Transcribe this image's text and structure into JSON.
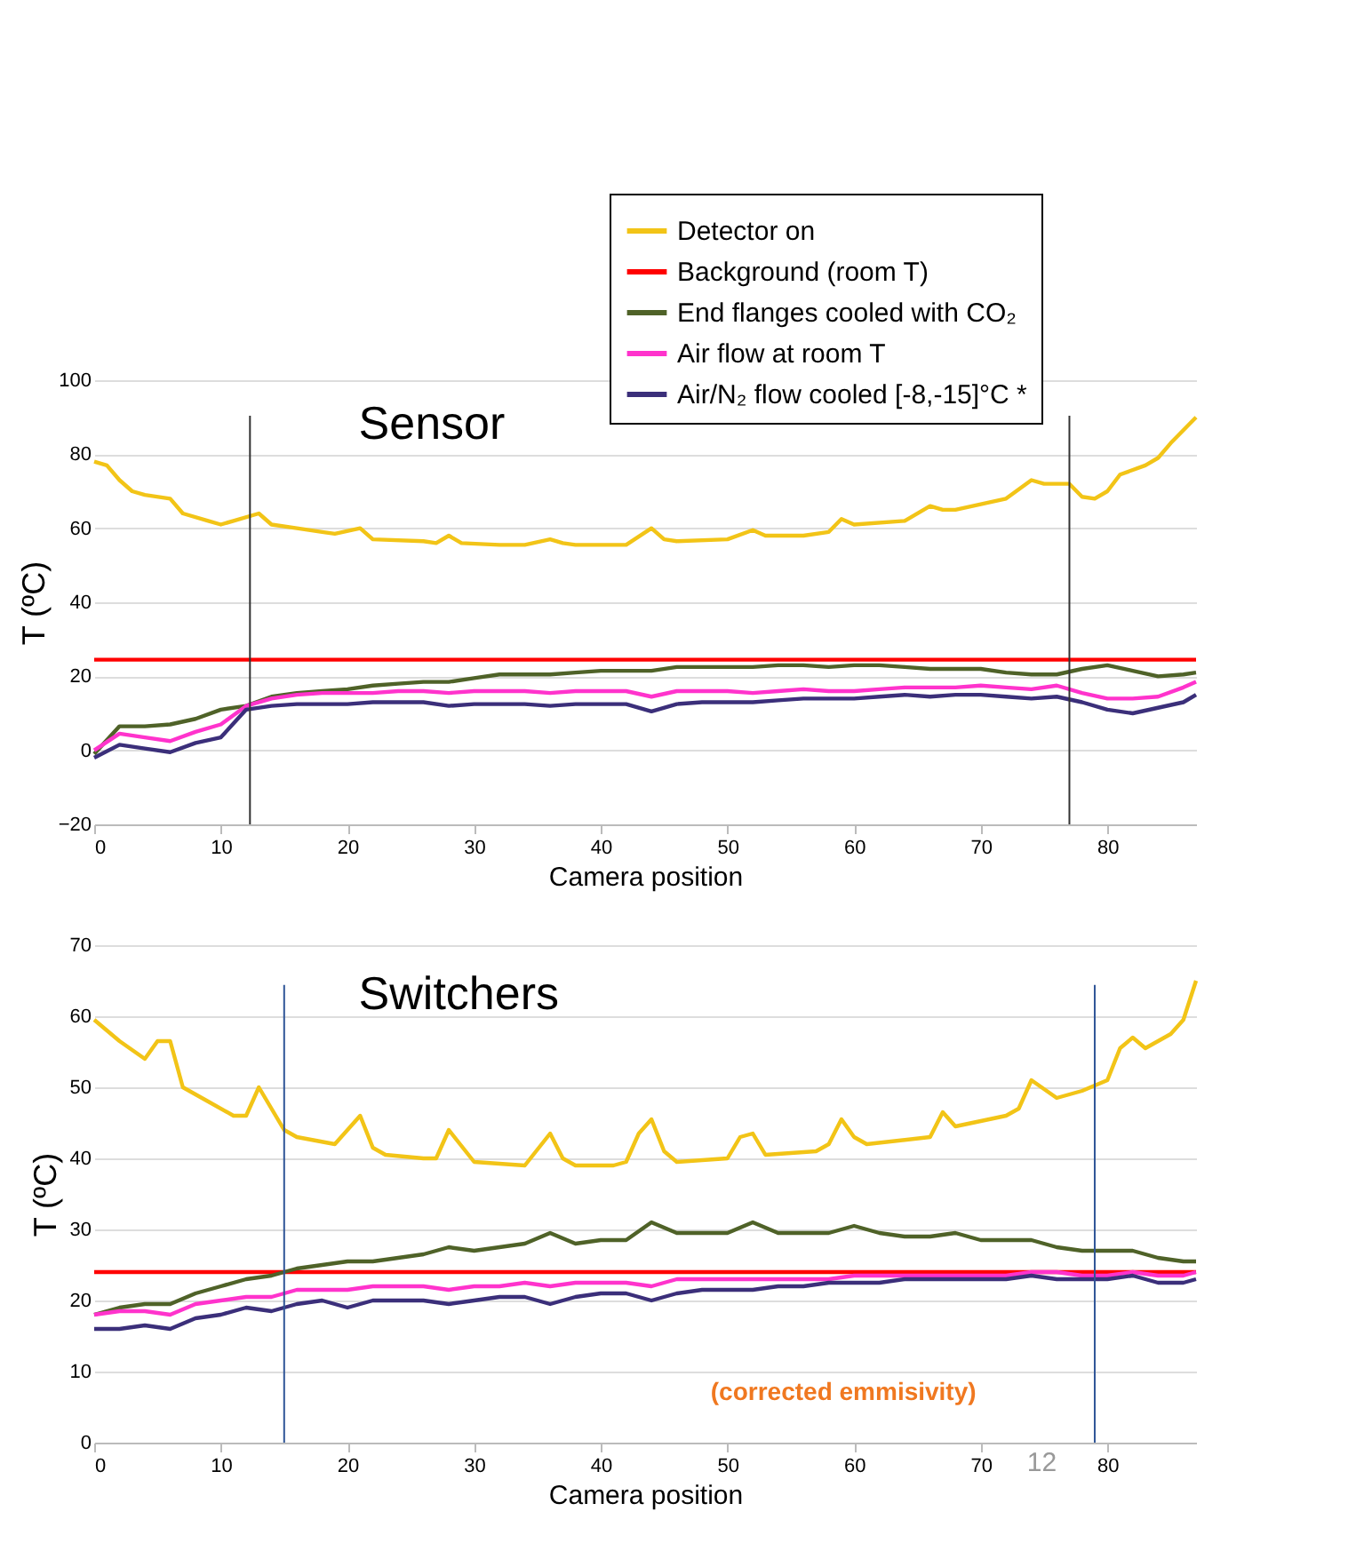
{
  "chart_data": [
    {
      "type": "line",
      "title": "Sensor",
      "xlabel": "Camera position",
      "ylabel": "T (ºC)",
      "xlim": [
        0,
        87
      ],
      "xticks": [
        0,
        10,
        20,
        30,
        40,
        50,
        60,
        70,
        80
      ],
      "ylim": [
        -20,
        100
      ],
      "yticks": [
        -20,
        0,
        20,
        40,
        60,
        80,
        100
      ],
      "grid": "y",
      "legend": "top right",
      "line_style": "solid",
      "marker": "none",
      "x": [
        0,
        2,
        4,
        6,
        8,
        10,
        12,
        14,
        16,
        18,
        20,
        22,
        24,
        26,
        28,
        30,
        32,
        34,
        36,
        38,
        40,
        42,
        44,
        46,
        48,
        50,
        52,
        54,
        56,
        58,
        60,
        62,
        64,
        66,
        68,
        70,
        72,
        74,
        76,
        78,
        80,
        82,
        84,
        86,
        87
      ],
      "series": [
        {
          "name": "Detector on",
          "color": "#f2c417",
          "x": [
            0,
            1,
            2,
            3,
            4,
            6,
            7,
            9,
            10,
            11,
            13,
            14,
            16,
            18,
            19,
            21,
            22,
            26,
            27,
            28,
            29,
            32,
            34,
            36,
            37,
            38,
            42,
            44,
            45,
            46,
            50,
            52,
            53,
            56,
            58,
            59,
            60,
            64,
            66,
            67,
            68,
            72,
            74,
            75,
            77,
            78,
            79,
            80,
            81,
            83,
            84,
            85,
            87
          ],
          "values": [
            78,
            77,
            73,
            70,
            69,
            68,
            64,
            62,
            61,
            62,
            64,
            61,
            60,
            59,
            58.5,
            60,
            57,
            56.5,
            56,
            58,
            56,
            55.5,
            55.5,
            57,
            56,
            55.5,
            55.5,
            60,
            57,
            56.5,
            57,
            59.5,
            58,
            58,
            59,
            62.5,
            61,
            62,
            66,
            65,
            65,
            68,
            73,
            72,
            72,
            68.5,
            68,
            70,
            74.5,
            77,
            79,
            83,
            90
          ]
        },
        {
          "name": "Background (room T)",
          "color": "#ff0000",
          "x": [
            0,
            87
          ],
          "values": [
            24.5,
            24.5
          ]
        },
        {
          "name": "End flanges cooled with CO₂",
          "color": "#4f6228",
          "values": [
            -1,
            6.5,
            6.5,
            7,
            8.5,
            11,
            12,
            14.5,
            15.5,
            16,
            16.5,
            17.5,
            18,
            18.5,
            18.5,
            19.5,
            20.5,
            20.5,
            20.5,
            21,
            21.5,
            21.5,
            21.5,
            22.5,
            22.5,
            22.5,
            22.5,
            23,
            23,
            22.5,
            23,
            23,
            22.5,
            22,
            22,
            22,
            21,
            20.5,
            20.5,
            22,
            23,
            21.5,
            20,
            20.5,
            21
          ]
        },
        {
          "name": "Air flow at room T",
          "color": "#ff33cc",
          "values": [
            0,
            4.5,
            3.5,
            2.5,
            5,
            7,
            12,
            14,
            15,
            15.5,
            15.5,
            15.5,
            16,
            16,
            15.5,
            16,
            16,
            16,
            15.5,
            16,
            16,
            16,
            14.5,
            16,
            16,
            16,
            15.5,
            16,
            16.5,
            16,
            16,
            16.5,
            17,
            17,
            17,
            17.5,
            17,
            16.5,
            17.5,
            15.5,
            14,
            14,
            14.5,
            17,
            18.5
          ]
        },
        {
          "name": "Air/N₂ flow cooled [-8,-15]°C *",
          "color": "#3b2f7a",
          "values": [
            -2,
            1.5,
            0.5,
            -0.5,
            2,
            3.5,
            11,
            12,
            12.5,
            12.5,
            12.5,
            13,
            13,
            13,
            12,
            12.5,
            12.5,
            12.5,
            12,
            12.5,
            12.5,
            12.5,
            10.5,
            12.5,
            13,
            13,
            13,
            13.5,
            14,
            14,
            14,
            14.5,
            15,
            14.5,
            15,
            15,
            14.5,
            14,
            14.5,
            13,
            11,
            10,
            11.5,
            13,
            15
          ]
        }
      ],
      "ref_lines": [
        {
          "axis": "x",
          "value": 12.3,
          "color": "#333333"
        },
        {
          "axis": "x",
          "value": 77,
          "color": "#333333"
        }
      ]
    },
    {
      "type": "line",
      "title": "Switchers",
      "xlabel": "Camera position",
      "ylabel": "T (ºC)",
      "xlim": [
        0,
        87
      ],
      "xticks": [
        0,
        10,
        20,
        30,
        40,
        50,
        60,
        70,
        80
      ],
      "ylim": [
        0,
        70
      ],
      "yticks": [
        0,
        10,
        20,
        30,
        40,
        50,
        60,
        70
      ],
      "grid": "y",
      "line_style": "solid",
      "marker": "none",
      "annotations": [
        "(corrected emmisivity)",
        "12"
      ],
      "x": [
        0,
        2,
        4,
        6,
        8,
        10,
        12,
        14,
        16,
        18,
        20,
        22,
        24,
        26,
        28,
        30,
        32,
        34,
        36,
        38,
        40,
        42,
        44,
        46,
        48,
        50,
        52,
        54,
        56,
        58,
        60,
        62,
        64,
        66,
        68,
        70,
        72,
        74,
        76,
        78,
        80,
        82,
        84,
        86,
        87
      ],
      "series": [
        {
          "color": "#f2c417",
          "x": [
            0,
            2,
            4,
            5,
            6,
            7,
            9,
            11,
            12,
            13,
            15,
            16,
            19,
            21,
            22,
            23,
            26,
            27,
            28,
            30,
            34,
            36,
            37,
            38,
            41,
            42,
            43,
            44,
            45,
            46,
            50,
            51,
            52,
            53,
            57,
            58,
            59,
            60,
            61,
            66,
            67,
            68,
            72,
            73,
            74,
            76,
            78,
            80,
            81,
            82,
            83,
            85,
            86,
            87
          ],
          "values": [
            59.5,
            56.5,
            54,
            56.5,
            56.5,
            50,
            48,
            46,
            46,
            50,
            44,
            43,
            42,
            46,
            41.5,
            40.5,
            40,
            40,
            44,
            39.5,
            39,
            43.5,
            40,
            39,
            39,
            39.5,
            43.5,
            45.5,
            41,
            39.5,
            40,
            43,
            43.5,
            40.5,
            41,
            42,
            45.5,
            43,
            42,
            43,
            46.5,
            44.5,
            46,
            47,
            51,
            48.5,
            49.5,
            51,
            55.5,
            57,
            55.5,
            57.5,
            59.5,
            65
          ]
        },
        {
          "color": "#ff0000",
          "x": [
            0,
            87
          ],
          "values": [
            24,
            24
          ]
        },
        {
          "color": "#4f6228",
          "values": [
            18,
            19,
            19.5,
            19.5,
            21,
            22,
            23,
            23.5,
            24.5,
            25,
            25.5,
            25.5,
            26,
            26.5,
            27.5,
            27,
            27.5,
            28,
            29.5,
            28,
            28.5,
            28.5,
            31,
            29.5,
            29.5,
            29.5,
            31,
            29.5,
            29.5,
            29.5,
            30.5,
            29.5,
            29,
            29,
            29.5,
            28.5,
            28.5,
            28.5,
            27.5,
            27,
            27,
            27,
            26,
            25.5,
            25.5
          ]
        },
        {
          "color": "#ff33cc",
          "values": [
            18,
            18.5,
            18.5,
            18,
            19.5,
            20,
            20.5,
            20.5,
            21.5,
            21.5,
            21.5,
            22,
            22,
            22,
            21.5,
            22,
            22,
            22.5,
            22,
            22.5,
            22.5,
            22.5,
            22,
            23,
            23,
            23,
            23,
            23,
            23,
            23,
            23.5,
            23.5,
            23.5,
            23.5,
            23.5,
            23.5,
            23.5,
            24,
            24,
            23.5,
            23.5,
            24,
            23.5,
            23.5,
            24
          ]
        },
        {
          "color": "#3b2f7a",
          "values": [
            16,
            16,
            16.5,
            16,
            17.5,
            18,
            19,
            18.5,
            19.5,
            20,
            19,
            20,
            20,
            20,
            19.5,
            20,
            20.5,
            20.5,
            19.5,
            20.5,
            21,
            21,
            20,
            21,
            21.5,
            21.5,
            21.5,
            22,
            22,
            22.5,
            22.5,
            22.5,
            23,
            23,
            23,
            23,
            23,
            23.5,
            23,
            23,
            23,
            23.5,
            22.5,
            22.5,
            23
          ]
        }
      ],
      "ref_lines": [
        {
          "axis": "x",
          "value": 15,
          "color": "#2f5597"
        },
        {
          "axis": "x",
          "value": 79,
          "color": "#2f5597"
        }
      ]
    }
  ]
}
